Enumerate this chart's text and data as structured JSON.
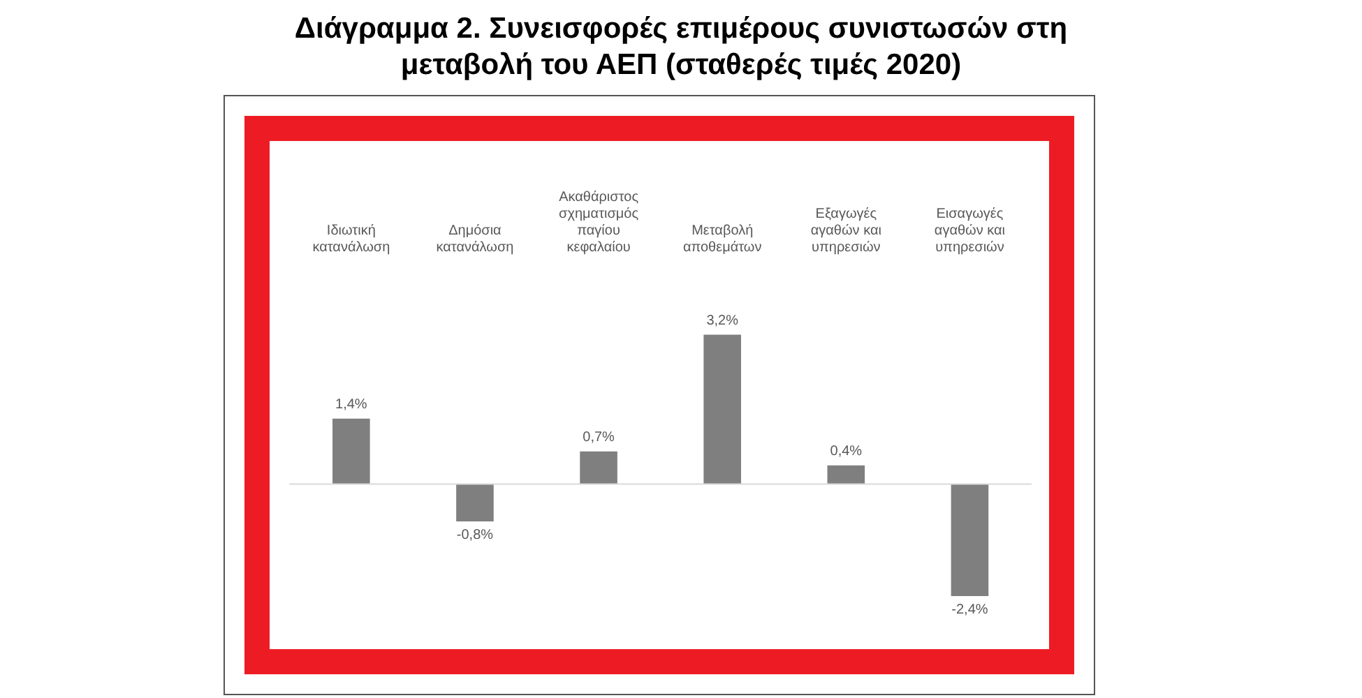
{
  "chart_data": {
    "type": "bar",
    "title": "Διάγραμμα 2. Συνεισφορές επιμέρους συνιστωσών στη μεταβολή του ΑΕΠ (σταθερές τιμές 2020)",
    "categories": [
      "Ιδιωτική κατανάλωση",
      "Δημόσια κατανάλωση",
      "Ακαθάριστος σχηματισμός παγίου κεφαλαίου",
      "Μεταβολή αποθεμάτων",
      "Εξαγωγές αγαθών και υπηρεσιών",
      "Εισαγωγές αγαθών και υπηρεσιών"
    ],
    "values": [
      1.4,
      -0.8,
      0.7,
      3.2,
      0.4,
      -2.4
    ],
    "value_labels": [
      "1,4%",
      "-0,8%",
      "0,7%",
      "3,2%",
      "0,4%",
      "-2,4%"
    ],
    "color": "#7f7f7f",
    "grid": false,
    "legend": false
  }
}
